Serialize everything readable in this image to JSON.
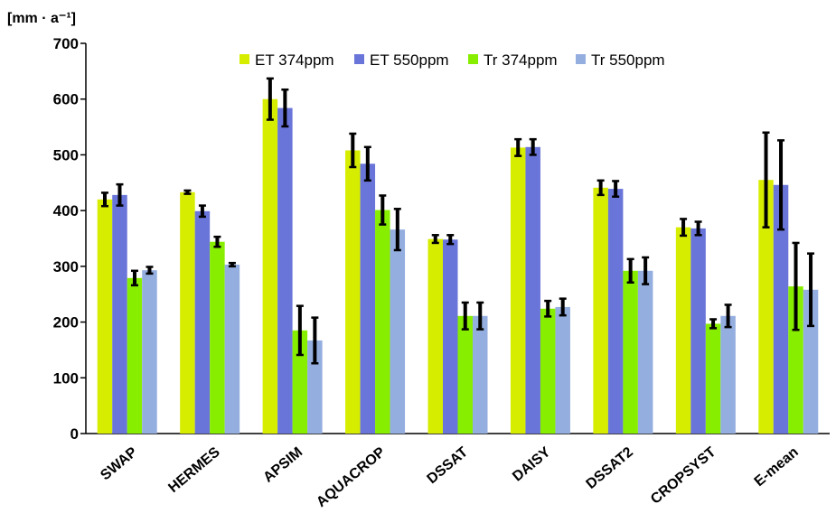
{
  "chart_data": {
    "type": "bar",
    "ylabel_unit": "[mm · a⁻¹]",
    "ylim": [
      0,
      700
    ],
    "yticks": [
      0,
      100,
      200,
      300,
      400,
      500,
      600,
      700
    ],
    "legend_position": "top",
    "grid": false,
    "categories": [
      "SWAP",
      "HERMES",
      "APSIM",
      "AQUACROP",
      "DSSAT",
      "DAISY",
      "DSSAT2",
      "CROPSYST",
      "E-mean"
    ],
    "series": [
      {
        "name": "ET 374ppm",
        "color": "#d7ed00",
        "values": [
          420,
          433,
          600,
          508,
          349,
          513,
          441,
          370,
          455
        ],
        "errors": [
          12,
          3,
          37,
          30,
          7,
          15,
          13,
          15,
          85
        ]
      },
      {
        "name": "ET 550ppm",
        "color": "#6a75d9",
        "values": [
          428,
          399,
          584,
          484,
          348,
          514,
          439,
          368,
          446
        ],
        "errors": [
          19,
          10,
          33,
          30,
          8,
          14,
          14,
          12,
          80
        ]
      },
      {
        "name": "Tr 374ppm",
        "color": "#88ee00",
        "values": [
          279,
          344,
          185,
          401,
          211,
          224,
          292,
          197,
          264
        ],
        "errors": [
          13,
          9,
          44,
          26,
          24,
          14,
          21,
          8,
          78
        ]
      },
      {
        "name": "Tr 550ppm",
        "color": "#94aee0",
        "values": [
          293,
          303,
          167,
          366,
          211,
          227,
          292,
          211,
          258
        ],
        "errors": [
          6,
          3,
          41,
          37,
          24,
          15,
          24,
          20,
          65
        ]
      }
    ]
  }
}
